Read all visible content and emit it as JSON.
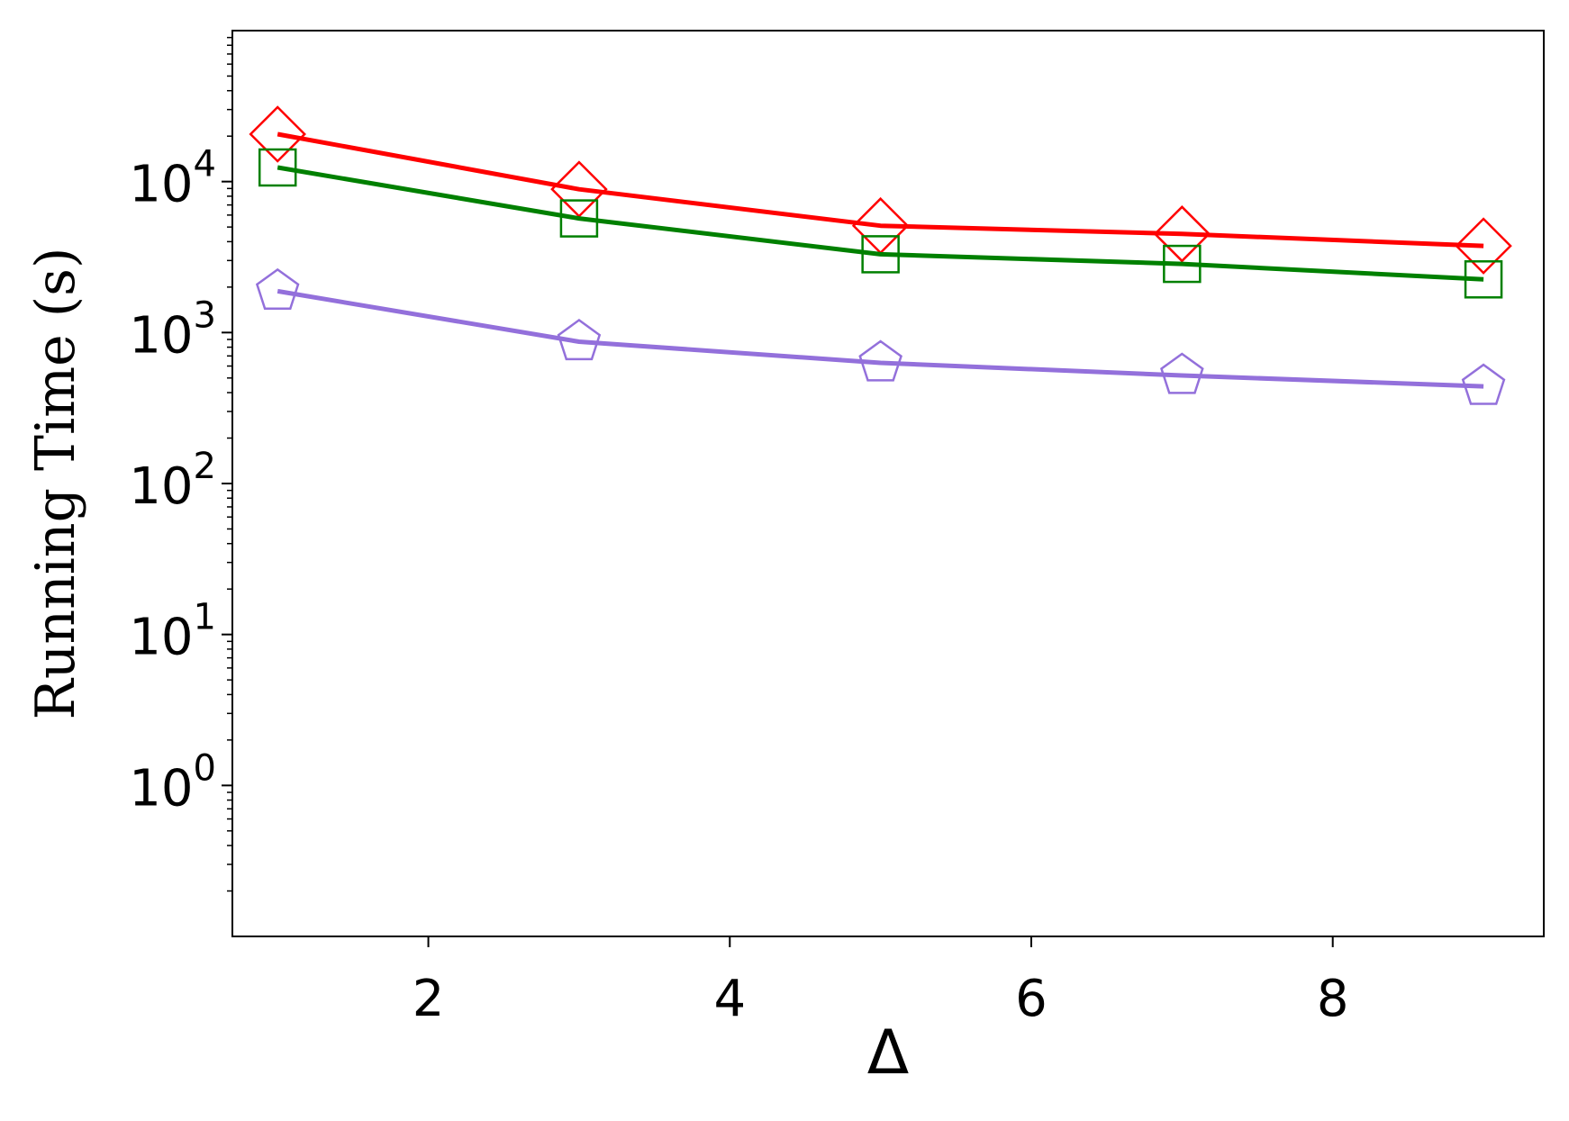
{
  "chart_data": {
    "type": "line",
    "xlabel": "Δ",
    "ylabel": "Running Time (s)",
    "yscale": "log",
    "xlim": [
      0.7,
      9.4
    ],
    "ylim_log10": [
      -1.0,
      5.0
    ],
    "x_ticks": [
      2,
      4,
      6,
      8
    ],
    "x_tick_labels": [
      "2",
      "4",
      "6",
      "8"
    ],
    "y_ticks_log10": [
      0,
      1,
      2,
      3,
      4
    ],
    "y_tick_labels": [
      {
        "base": "10",
        "exp": "0"
      },
      {
        "base": "10",
        "exp": "1"
      },
      {
        "base": "10",
        "exp": "2"
      },
      {
        "base": "10",
        "exp": "3"
      },
      {
        "base": "10",
        "exp": "4"
      }
    ],
    "grid": false,
    "legend": "none",
    "x": [
      1,
      3,
      5,
      7,
      9
    ],
    "series": [
      {
        "color": "#ff0000",
        "marker": "diamond",
        "values": [
          20600,
          8900,
          5100,
          4500,
          3750
        ]
      },
      {
        "color": "#008000",
        "marker": "square",
        "values": [
          12400,
          5700,
          3300,
          2850,
          2250
        ]
      },
      {
        "color": "#9370db",
        "marker": "pentagon",
        "values": [
          1880,
          870,
          630,
          520,
          440
        ]
      }
    ]
  }
}
